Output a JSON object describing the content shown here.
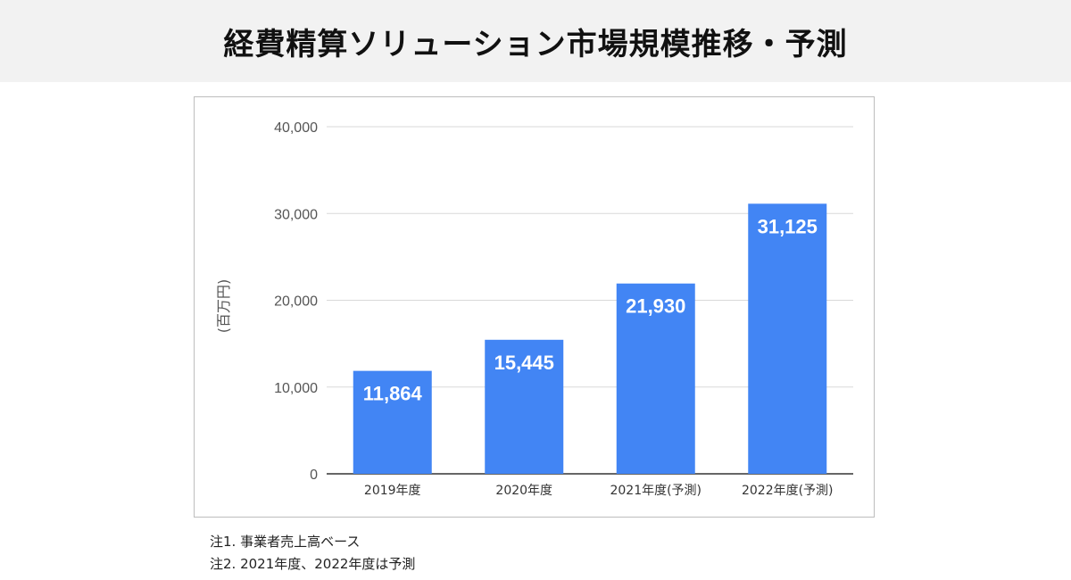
{
  "header": {
    "title": "経費精算ソリューション市場規模推移・予測"
  },
  "colors": {
    "bar": "#4285f4",
    "grid": "#d9d9d9",
    "axis": "#333333",
    "header_bg": "#f2f2f2"
  },
  "chart_data": {
    "type": "bar",
    "categories": [
      "2019年度",
      "2020年度",
      "2021年度(予測)",
      "2022年度(予測)"
    ],
    "values": [
      11864,
      15445,
      21930,
      31125
    ],
    "value_labels": [
      "11,864",
      "15,445",
      "21,930",
      "31,125"
    ],
    "ylabel": "(百万円)",
    "xlabel": "",
    "ylim": [
      0,
      40000
    ],
    "yticks": [
      0,
      10000,
      20000,
      30000,
      40000
    ],
    "ytick_labels": [
      "0",
      "10,000",
      "20,000",
      "30,000",
      "40,000"
    ],
    "grid": true,
    "legend": "none"
  },
  "notes": [
    "注1. 事業者売上高ベース",
    "注2. 2021年度、2022年度は予測"
  ]
}
